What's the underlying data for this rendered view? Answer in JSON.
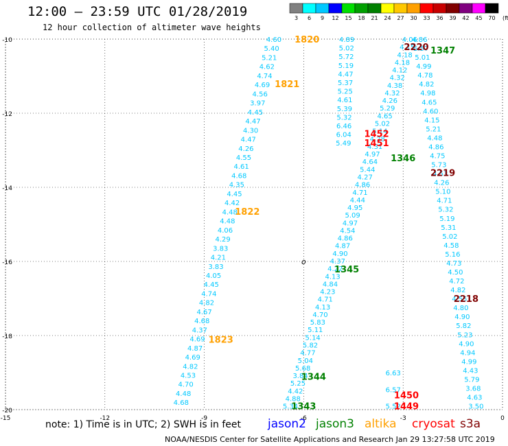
{
  "header": {
    "title": "12:00 — 23:59 UTC 01/28/2019",
    "subtitle": "12 hour collection of altimeter wave heights"
  },
  "colorbar": {
    "labels": [
      "3",
      "6",
      "9",
      "12",
      "15",
      "18",
      "21",
      "24",
      "27",
      "30",
      "33",
      "36",
      "39",
      "42",
      "45",
      "70"
    ],
    "unit": "(ft)",
    "colors": [
      "#808080",
      "#00ffff",
      "#00c8ff",
      "#0000ff",
      "#00e000",
      "#00a000",
      "#008000",
      "#ffff00",
      "#ffc800",
      "#ffa000",
      "#ff0000",
      "#c80000",
      "#800000",
      "#800080",
      "#ff00ff",
      "#000000"
    ]
  },
  "footer": {
    "note": "note:  1) Time is in UTC; 2) SWH is in feet",
    "credit": "NOAA/NESDIS Center for Satellite Applications and Research    Jan 29 13:27:58 UTC 2019",
    "satellites": [
      {
        "name": "jason2",
        "color": "#0000ff"
      },
      {
        "name": "jason3",
        "color": "#008000"
      },
      {
        "name": "altika",
        "color": "#ffa000"
      },
      {
        "name": "cryosat",
        "color": "#ff0000"
      },
      {
        "name": "s3a",
        "color": "#800000"
      }
    ]
  },
  "axes": {
    "x_ticks": [
      "-15",
      "-12",
      "-9",
      "-6",
      "-3",
      "0"
    ],
    "y_ticks": [
      "-10",
      "-12",
      "-14",
      "-16",
      "-18",
      "-20"
    ],
    "lon_min": -15,
    "lon_max": 0,
    "lat_min": -20,
    "lat_max": -10,
    "grid": true
  },
  "chart_data": {
    "type": "scatter",
    "title": "12:00 — 23:59 UTC 01/28/2019",
    "subtitle": "12 hour collection of altimeter wave heights",
    "xlim": [
      -15,
      0
    ],
    "ylim": [
      -20,
      -10
    ],
    "tracks": [
      {
        "name": "track-1",
        "lon_start": -6.9,
        "lat_start": -10.0,
        "lon_end": -9.7,
        "lat_end": -19.8,
        "labels": [
          "4.60",
          "5.40",
          "5.21",
          "4.62",
          "4.74",
          "4.69",
          "4.56",
          "3.97",
          "4.45",
          "4.47",
          "4.30",
          "4.47",
          "4.26",
          "4.55",
          "4.61",
          "4.68",
          "4.35",
          "4.45",
          "4.42",
          "4.48",
          "4.48",
          "4.06",
          "4.29",
          "3.83",
          "4.21",
          "3.83",
          "4.05",
          "4.45",
          "4.74",
          "4.82",
          "4.67",
          "4.68",
          "4.37",
          "4.69",
          "4.87",
          "4.69",
          "4.82",
          "4.53",
          "4.70",
          "4.48",
          "4.68"
        ]
      },
      {
        "name": "track-2",
        "lon_start": -4.7,
        "lat_start": -10.0,
        "lon_end": -4.8,
        "lat_end": -12.8,
        "labels": [
          "4.89",
          "5.02",
          "5.72",
          "5.19",
          "4.47",
          "5.37",
          "5.25",
          "4.61",
          "5.39",
          "5.32",
          "6.46",
          "6.04",
          "5.49"
        ]
      },
      {
        "name": "track-3",
        "lon_start": -2.8,
        "lat_start": -10.0,
        "lon_end": -6.4,
        "lat_end": -19.9,
        "labels": [
          "4.06",
          "4.15",
          "4.18",
          "4.18",
          "4.12",
          "4.32",
          "4.38",
          "4.32",
          "4.26",
          "5.29",
          "4.65",
          "5.02",
          "5.14",
          "4.28",
          "4.31",
          "4.97",
          "4.64",
          "5.44",
          "4.27",
          "4.86",
          "4.71",
          "4.44",
          "4.95",
          "5.09",
          "4.97",
          "4.54",
          "4.86",
          "4.87",
          "4.90",
          "4.37",
          "4.22",
          "4.13",
          "4.84",
          "4.23",
          "4.71",
          "4.13",
          "4.70",
          "5.83",
          "5.11",
          "5.14",
          "5.82",
          "4.77",
          "5.04",
          "5.68",
          "3.84",
          "5.25",
          "4.42",
          "4.88",
          "5.34"
        ]
      },
      {
        "name": "track-4",
        "lon_start": -2.5,
        "lat_start": -10.0,
        "lon_end": -0.8,
        "lat_end": -19.9,
        "labels": [
          "4.86",
          "5.57",
          "5.01",
          "4.99",
          "4.78",
          "4.82",
          "4.98",
          "4.65",
          "4.60",
          "4.15",
          "5.21",
          "4.48",
          "4.86",
          "4.75",
          "5.73",
          "4.53",
          "4.26",
          "5.10",
          "4.71",
          "5.32",
          "5.19",
          "5.31",
          "5.02",
          "4.58",
          "5.16",
          "4.73",
          "4.50",
          "4.72",
          "4.82",
          "4.55",
          "4.80",
          "4.90",
          "5.82",
          "5.23",
          "4.90",
          "4.94",
          "4.99",
          "4.43",
          "5.79",
          "3.68",
          "4.63",
          "3.50"
        ]
      },
      {
        "name": "track-5",
        "lon_start": -3.3,
        "lat_start": -19.0,
        "lon_end": -3.3,
        "lat_end": -19.9,
        "labels": [
          "6.63",
          "6.57",
          "5.52"
        ]
      }
    ],
    "time_labels": [
      {
        "text": "1820",
        "lon": -5.9,
        "lat": -10.0,
        "satellite": "altika"
      },
      {
        "text": "1821",
        "lon": -6.5,
        "lat": -11.2,
        "satellite": "altika"
      },
      {
        "text": "1822",
        "lon": -7.7,
        "lat": -14.65,
        "satellite": "altika"
      },
      {
        "text": "1823",
        "lon": -8.5,
        "lat": -18.1,
        "satellite": "altika"
      },
      {
        "text": "2220",
        "lon": -2.6,
        "lat": -10.2,
        "satellite": "s3a"
      },
      {
        "text": "1347",
        "lon": -1.8,
        "lat": -10.3,
        "satellite": "jason3"
      },
      {
        "text": "1452",
        "lon": -3.8,
        "lat": -12.55,
        "satellite": "cryosat"
      },
      {
        "text": "1451",
        "lon": -3.8,
        "lat": -12.8,
        "satellite": "cryosat"
      },
      {
        "text": "1346",
        "lon": -3.0,
        "lat": -13.2,
        "satellite": "jason3"
      },
      {
        "text": "2219",
        "lon": -1.8,
        "lat": -13.6,
        "satellite": "s3a"
      },
      {
        "text": "1345",
        "lon": -4.7,
        "lat": -16.2,
        "satellite": "jason3"
      },
      {
        "text": "2218",
        "lon": -1.1,
        "lat": -17.0,
        "satellite": "s3a"
      },
      {
        "text": "1344",
        "lon": -5.7,
        "lat": -19.1,
        "satellite": "jason3"
      },
      {
        "text": "1343",
        "lon": -6.0,
        "lat": -19.9,
        "satellite": "jason3"
      },
      {
        "text": "1450",
        "lon": -2.9,
        "lat": -19.6,
        "satellite": "cryosat"
      },
      {
        "text": "1449",
        "lon": -2.9,
        "lat": -19.9,
        "satellite": "cryosat"
      }
    ],
    "markers": [
      {
        "text": "o",
        "lon": -6.0,
        "lat": -16.0
      }
    ],
    "grid": true
  }
}
